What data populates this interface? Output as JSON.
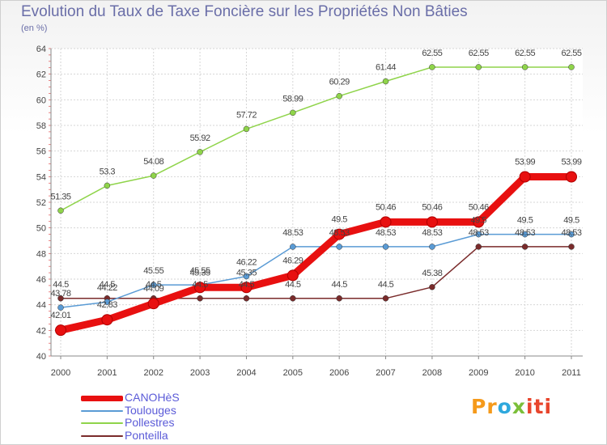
{
  "chart_data": {
    "type": "line",
    "title": "Evolution du Taux de Taxe Foncière sur les Propriétés Non Bâties",
    "ylabel": "(en %)",
    "xlabel": "",
    "ylim": [
      40,
      64
    ],
    "yticks": [
      40,
      42,
      44,
      46,
      48,
      50,
      52,
      54,
      56,
      58,
      60,
      62,
      64
    ],
    "categories": [
      "2000",
      "2001",
      "2002",
      "2003",
      "2004",
      "2005",
      "2006",
      "2007",
      "2008",
      "2009",
      "2010",
      "2011"
    ],
    "grid": true,
    "series": [
      {
        "name": "CANOHèS",
        "color": "#e81010",
        "values": [
          42.01,
          42.83,
          44.09,
          45.35,
          45.35,
          46.29,
          49.5,
          50.46,
          50.46,
          50.46,
          53.99,
          53.99
        ],
        "labels": [
          "42.01",
          "42.83",
          "44.09",
          "45.35",
          "45.35",
          "46.29",
          "49.5",
          "50.46",
          "50.46",
          "50.46",
          "53.99",
          "53.99"
        ]
      },
      {
        "name": "Toulouges",
        "color": "#5a9bd5",
        "values": [
          43.78,
          44.22,
          45.55,
          45.55,
          46.22,
          48.53,
          48.53,
          48.53,
          48.53,
          49.5,
          49.5,
          49.5
        ],
        "labels": [
          "43.78",
          "44.22",
          "45.55",
          "45.55",
          "46.22",
          "48.53",
          "48.53",
          "48.53",
          "48.53",
          "49.5",
          "49.5",
          "49.5"
        ]
      },
      {
        "name": "Pollestres",
        "color": "#8fd44a",
        "values": [
          51.35,
          53.3,
          54.08,
          55.92,
          57.72,
          58.99,
          60.29,
          61.44,
          62.55,
          62.55,
          62.55,
          62.55
        ],
        "labels": [
          "51.35",
          "53.3",
          "54.08",
          "55.92",
          "57.72",
          "58.99",
          "60.29",
          "61.44",
          "62.55",
          "62.55",
          "62.55",
          "62.55"
        ]
      },
      {
        "name": "Ponteilla",
        "color": "#7a2b2b",
        "values": [
          44.5,
          44.5,
          44.5,
          44.5,
          44.5,
          44.5,
          44.5,
          44.5,
          45.38,
          48.53,
          48.53,
          48.53
        ],
        "labels": [
          "44.5",
          "44.5",
          "44.5",
          "44.5",
          "44.5",
          "44.5",
          "44.5",
          "44.5",
          "45.38",
          "48.53",
          "48.53",
          "48.53"
        ]
      }
    ]
  },
  "logo": {
    "p1": "Pr",
    "p2": "o",
    "p3": "x",
    "p4": "iti"
  }
}
